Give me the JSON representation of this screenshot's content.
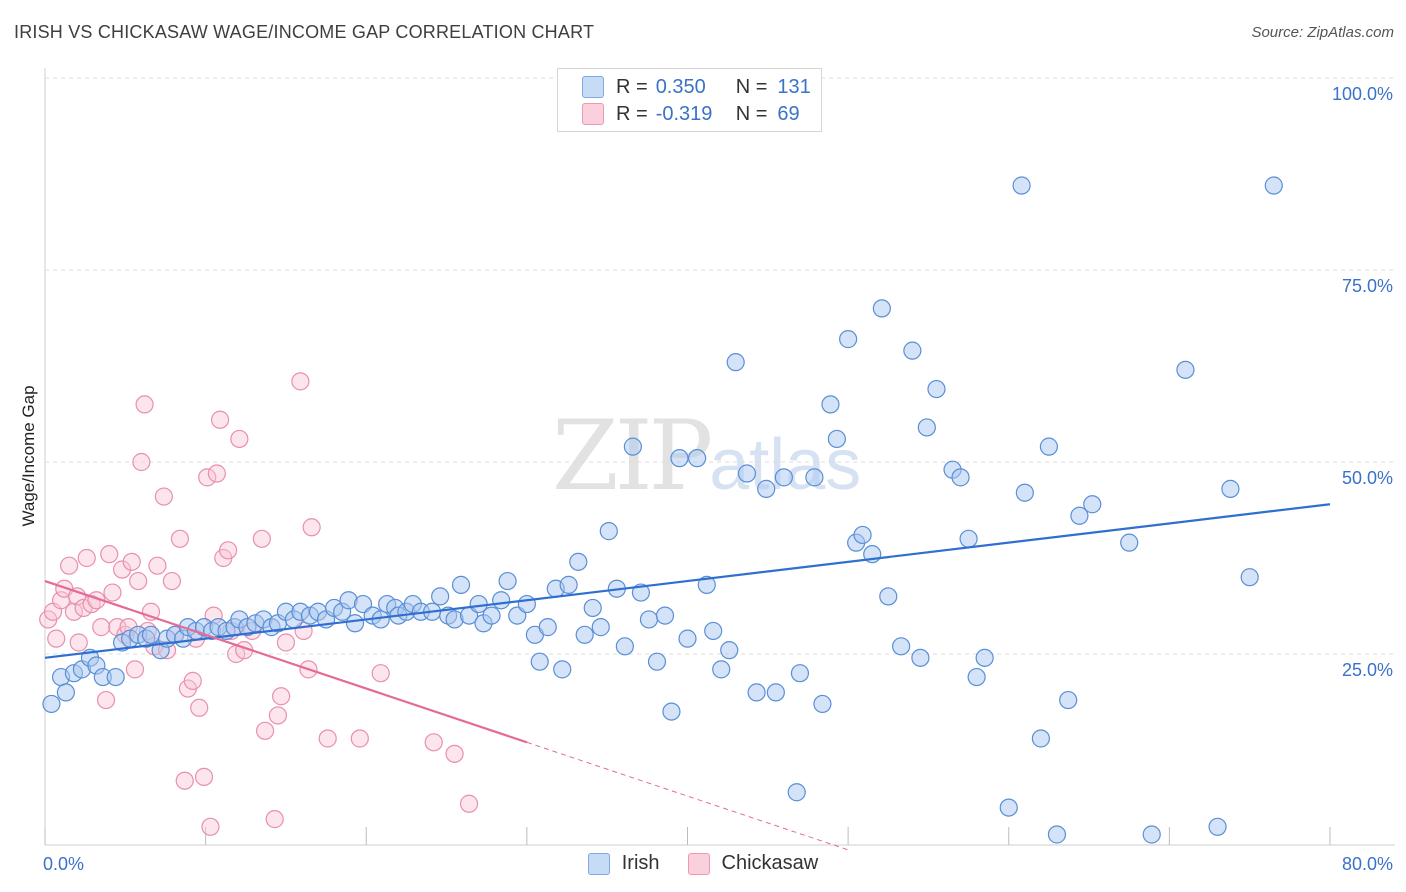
{
  "title": "IRISH VS CHICKASAW WAGE/INCOME GAP CORRELATION CHART",
  "source": "Source: ZipAtlas.com",
  "watermark": {
    "zip": "ZIP",
    "atlas": "atlas"
  },
  "legend": {
    "rows": [
      {
        "r_label": "R =",
        "r_value": "0.350",
        "n_label": "N =",
        "n_value": "131",
        "color": "#aac8f0"
      },
      {
        "r_label": "R =",
        "r_value": "-0.319",
        "n_label": "N =",
        "n_value": "69",
        "color": "#f6b6c8"
      }
    ]
  },
  "bottom_legend": [
    {
      "label": "Irish",
      "color": "#aac8f0"
    },
    {
      "label": "Chickasaw",
      "color": "#f6b6c8"
    }
  ],
  "chart_data": {
    "type": "scatter",
    "title": "IRISH VS CHICKASAW WAGE/INCOME GAP CORRELATION CHART",
    "xlabel": "",
    "ylabel": "Wage/Income Gap",
    "xlim": [
      0,
      80
    ],
    "ylim": [
      0,
      100
    ],
    "x_tick_labels": [
      "0.0%",
      "80.0%"
    ],
    "y_tick_labels": [
      "25.0%",
      "50.0%",
      "75.0%",
      "100.0%"
    ],
    "y_ticks": [
      25,
      50,
      75,
      100
    ],
    "grid": true,
    "legend_position": "top-center",
    "colors": {
      "irish_fill": "#aac8f0",
      "irish_stroke": "#5a8fd6",
      "irish_line": "#2f6fd0",
      "chick_fill": "#f8c6d4",
      "chick_stroke": "#e890ac",
      "chick_line": "#e56a98"
    },
    "series": [
      {
        "name": "Irish",
        "r": 0.35,
        "n": 131,
        "trend": {
          "x0": 0,
          "y0": 24.5,
          "x1": 80,
          "y1": 44.5
        },
        "points": [
          [
            0.4,
            18.5
          ],
          [
            1.0,
            22.0
          ],
          [
            1.3,
            20.0
          ],
          [
            1.8,
            22.5
          ],
          [
            2.3,
            23.0
          ],
          [
            2.8,
            24.5
          ],
          [
            3.2,
            23.5
          ],
          [
            3.6,
            22.0
          ],
          [
            4.4,
            22.0
          ],
          [
            4.8,
            26.5
          ],
          [
            5.3,
            27.0
          ],
          [
            5.8,
            27.5
          ],
          [
            6.3,
            27.0
          ],
          [
            6.6,
            27.5
          ],
          [
            7.2,
            25.5
          ],
          [
            7.6,
            27.0
          ],
          [
            8.1,
            27.5
          ],
          [
            8.6,
            27.0
          ],
          [
            8.9,
            28.5
          ],
          [
            9.4,
            28.0
          ],
          [
            9.9,
            28.5
          ],
          [
            10.4,
            28.0
          ],
          [
            10.8,
            28.5
          ],
          [
            11.3,
            28.0
          ],
          [
            11.8,
            28.5
          ],
          [
            12.1,
            29.5
          ],
          [
            12.6,
            28.5
          ],
          [
            13.1,
            29.0
          ],
          [
            13.6,
            29.5
          ],
          [
            14.1,
            28.5
          ],
          [
            14.5,
            29.0
          ],
          [
            15.0,
            30.5
          ],
          [
            15.5,
            29.5
          ],
          [
            15.9,
            30.5
          ],
          [
            16.5,
            30.0
          ],
          [
            17.0,
            30.5
          ],
          [
            17.5,
            29.5
          ],
          [
            18.0,
            31.0
          ],
          [
            18.5,
            30.5
          ],
          [
            18.9,
            32.0
          ],
          [
            19.3,
            29.0
          ],
          [
            19.8,
            31.5
          ],
          [
            20.4,
            30.0
          ],
          [
            20.9,
            29.5
          ],
          [
            21.3,
            31.5
          ],
          [
            21.8,
            31.0
          ],
          [
            22.0,
            30.0
          ],
          [
            22.5,
            30.5
          ],
          [
            22.9,
            31.5
          ],
          [
            23.4,
            30.5
          ],
          [
            24.1,
            30.5
          ],
          [
            24.6,
            32.5
          ],
          [
            25.1,
            30.0
          ],
          [
            25.5,
            29.5
          ],
          [
            25.9,
            34.0
          ],
          [
            26.4,
            30.0
          ],
          [
            27.0,
            31.5
          ],
          [
            27.3,
            29.0
          ],
          [
            27.8,
            30.0
          ],
          [
            28.4,
            32.0
          ],
          [
            28.8,
            34.5
          ],
          [
            29.4,
            30.0
          ],
          [
            30.0,
            31.5
          ],
          [
            30.5,
            27.5
          ],
          [
            30.8,
            24.0
          ],
          [
            31.3,
            28.5
          ],
          [
            31.8,
            33.5
          ],
          [
            32.2,
            23.0
          ],
          [
            32.6,
            34.0
          ],
          [
            33.2,
            37.0
          ],
          [
            33.6,
            27.5
          ],
          [
            34.1,
            31.0
          ],
          [
            34.6,
            28.5
          ],
          [
            35.1,
            41.0
          ],
          [
            35.6,
            33.5
          ],
          [
            36.1,
            26.0
          ],
          [
            36.6,
            52.0
          ],
          [
            37.1,
            33.0
          ],
          [
            37.6,
            29.5
          ],
          [
            38.1,
            24.0
          ],
          [
            38.6,
            30.0
          ],
          [
            39.0,
            17.5
          ],
          [
            39.5,
            50.5
          ],
          [
            40.0,
            27.0
          ],
          [
            40.6,
            50.5
          ],
          [
            41.2,
            34.0
          ],
          [
            41.6,
            28.0
          ],
          [
            42.1,
            23.0
          ],
          [
            42.6,
            25.5
          ],
          [
            43.0,
            63.0
          ],
          [
            43.7,
            48.5
          ],
          [
            44.3,
            20.0
          ],
          [
            44.9,
            46.5
          ],
          [
            45.5,
            20.0
          ],
          [
            46.0,
            48.0
          ],
          [
            46.8,
            7.0
          ],
          [
            47.0,
            22.5
          ],
          [
            47.9,
            48.0
          ],
          [
            48.4,
            18.5
          ],
          [
            48.9,
            57.5
          ],
          [
            49.3,
            53.0
          ],
          [
            50.0,
            66.0
          ],
          [
            50.5,
            39.5
          ],
          [
            50.9,
            40.5
          ],
          [
            51.5,
            38.0
          ],
          [
            52.1,
            70.0
          ],
          [
            52.5,
            32.5
          ],
          [
            53.3,
            26.0
          ],
          [
            54.0,
            64.5
          ],
          [
            54.5,
            24.5
          ],
          [
            54.9,
            54.5
          ],
          [
            55.5,
            59.5
          ],
          [
            56.5,
            49.0
          ],
          [
            57.0,
            48.0
          ],
          [
            57.5,
            40.0
          ],
          [
            58.0,
            22.0
          ],
          [
            58.5,
            24.5
          ],
          [
            60.0,
            5.0
          ],
          [
            61.0,
            46.0
          ],
          [
            62.0,
            14.0
          ],
          [
            62.5,
            52.0
          ],
          [
            63.0,
            1.5
          ],
          [
            63.7,
            19.0
          ],
          [
            64.4,
            43.0
          ],
          [
            65.2,
            44.5
          ],
          [
            67.5,
            39.5
          ],
          [
            68.9,
            1.5
          ],
          [
            71.0,
            62.0
          ],
          [
            73.0,
            2.5
          ],
          [
            73.8,
            46.5
          ],
          [
            75.0,
            35.0
          ],
          [
            76.5,
            86.0
          ],
          [
            60.8,
            86.0
          ]
        ]
      },
      {
        "name": "Chickasaw",
        "r": -0.319,
        "n": 69,
        "trend": {
          "x0": 0,
          "y0": 34.5,
          "x1": 30,
          "y1": 13.5,
          "dash_x1": 50,
          "dash_y1": -0.5
        },
        "points": [
          [
            0.2,
            29.5
          ],
          [
            0.5,
            30.5
          ],
          [
            0.7,
            27.0
          ],
          [
            1.0,
            32.0
          ],
          [
            1.2,
            33.5
          ],
          [
            1.5,
            36.5
          ],
          [
            1.8,
            30.5
          ],
          [
            2.0,
            32.5
          ],
          [
            2.1,
            26.5
          ],
          [
            2.4,
            31.0
          ],
          [
            2.6,
            37.5
          ],
          [
            2.9,
            31.5
          ],
          [
            3.2,
            32.0
          ],
          [
            3.5,
            28.5
          ],
          [
            3.8,
            19.0
          ],
          [
            4.0,
            38.0
          ],
          [
            4.2,
            33.0
          ],
          [
            4.5,
            28.5
          ],
          [
            4.8,
            36.0
          ],
          [
            5.0,
            27.5
          ],
          [
            5.2,
            28.5
          ],
          [
            5.4,
            37.0
          ],
          [
            5.6,
            23.0
          ],
          [
            5.8,
            34.5
          ],
          [
            6.0,
            50.0
          ],
          [
            6.2,
            57.5
          ],
          [
            6.4,
            28.0
          ],
          [
            6.6,
            30.5
          ],
          [
            6.8,
            26.0
          ],
          [
            7.0,
            36.5
          ],
          [
            7.4,
            45.5
          ],
          [
            7.6,
            25.5
          ],
          [
            7.9,
            34.5
          ],
          [
            8.1,
            27.5
          ],
          [
            8.4,
            40.0
          ],
          [
            8.7,
            8.5
          ],
          [
            8.9,
            20.5
          ],
          [
            9.2,
            21.5
          ],
          [
            9.4,
            27.0
          ],
          [
            9.6,
            18.0
          ],
          [
            9.9,
            9.0
          ],
          [
            10.1,
            48.0
          ],
          [
            10.3,
            2.5
          ],
          [
            10.5,
            30.0
          ],
          [
            10.7,
            48.5
          ],
          [
            10.9,
            55.5
          ],
          [
            11.1,
            37.5
          ],
          [
            11.4,
            38.5
          ],
          [
            11.6,
            28.0
          ],
          [
            11.9,
            25.0
          ],
          [
            12.1,
            53.0
          ],
          [
            12.4,
            25.5
          ],
          [
            12.9,
            28.0
          ],
          [
            13.5,
            40.0
          ],
          [
            13.7,
            15.0
          ],
          [
            14.3,
            3.5
          ],
          [
            14.5,
            17.0
          ],
          [
            14.7,
            19.5
          ],
          [
            15.0,
            26.5
          ],
          [
            15.9,
            60.5
          ],
          [
            16.1,
            28.0
          ],
          [
            16.4,
            23.0
          ],
          [
            16.6,
            41.5
          ],
          [
            17.6,
            14.0
          ],
          [
            19.6,
            14.0
          ],
          [
            20.9,
            22.5
          ],
          [
            24.2,
            13.5
          ],
          [
            25.5,
            12.0
          ],
          [
            26.4,
            5.5
          ]
        ]
      }
    ]
  }
}
